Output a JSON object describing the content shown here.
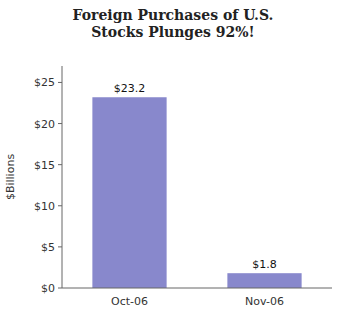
{
  "chart_data": {
    "type": "bar",
    "title": "Foreign Purchases of U.S.\nStocks Plunges 92%!",
    "categories": [
      "Oct-06",
      "Nov-06"
    ],
    "values": [
      23.2,
      1.8
    ],
    "value_labels": [
      "$23.2",
      "$1.8"
    ],
    "data_labels": true,
    "color": "#8888CC",
    "ylabel": "$Billions",
    "ylim": [
      0,
      27
    ],
    "yticks": [
      {
        "value": 0,
        "label": "$0"
      },
      {
        "value": 5,
        "label": "$5"
      },
      {
        "value": 10,
        "label": "$10"
      },
      {
        "value": 15,
        "label": "$15"
      },
      {
        "value": 20,
        "label": "$20"
      },
      {
        "value": 25,
        "label": "$25"
      }
    ],
    "grid": false
  }
}
